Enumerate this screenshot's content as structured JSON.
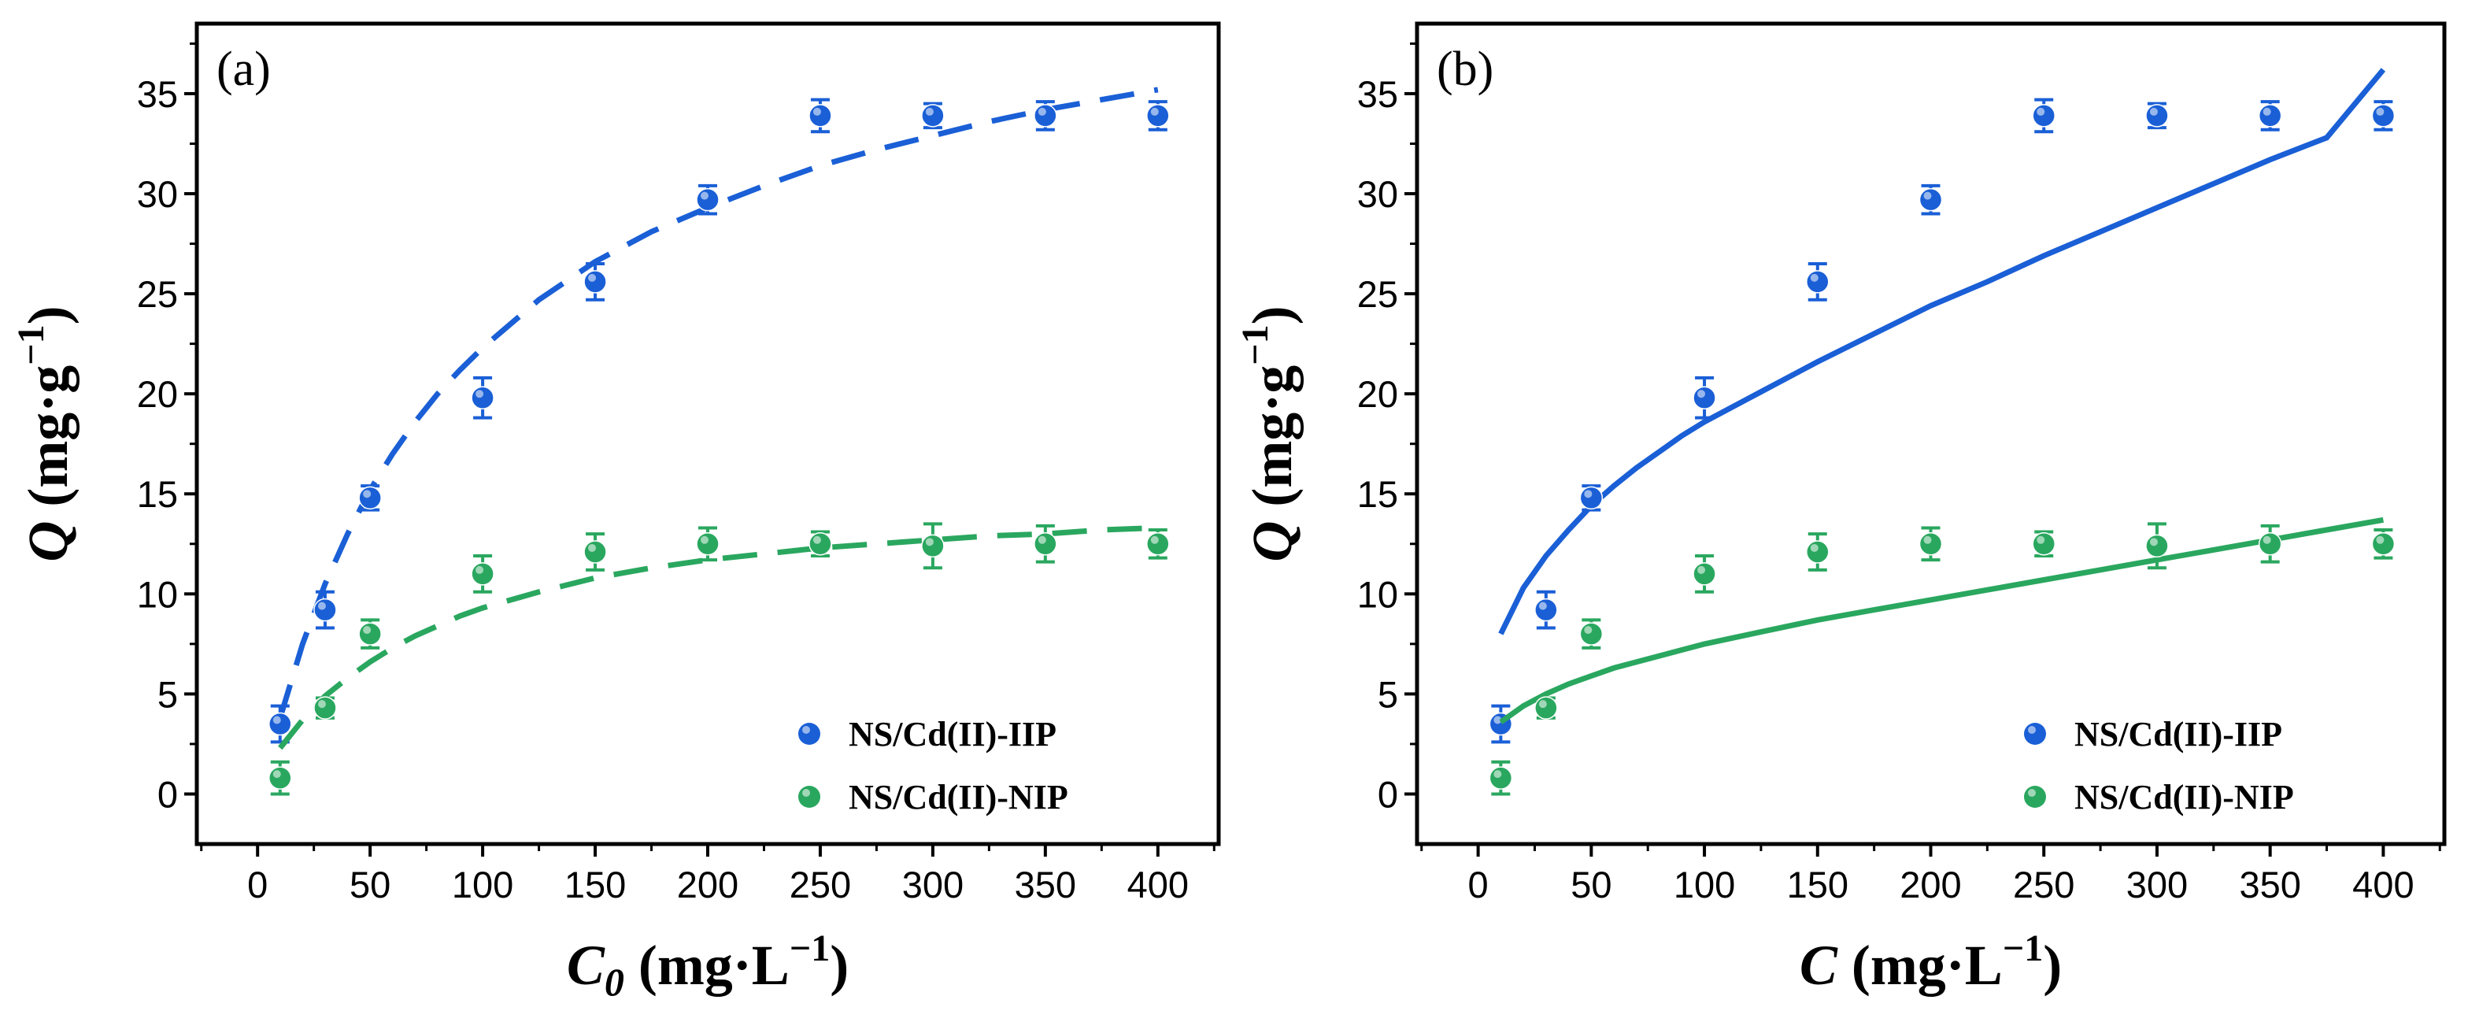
{
  "chart_data": [
    {
      "type": "scatter",
      "panel_label": "(a)",
      "fit_style": "dashed",
      "xlabel": {
        "main": "C",
        "sub": "0",
        "unit": "(mg·L",
        "sup": "−1",
        "close": ")"
      },
      "ylabel": {
        "main": "Q",
        "unit": "(mg·g",
        "sup": "−1",
        "close": ")"
      },
      "xlim": [
        -27,
        427
      ],
      "ylim": [
        -2.5,
        38.5
      ],
      "xticks": [
        0,
        50,
        100,
        150,
        200,
        250,
        300,
        350,
        400
      ],
      "yticks": [
        0,
        5,
        10,
        15,
        20,
        25,
        30,
        35
      ],
      "legend_position": "bottom-right",
      "series": [
        {
          "name": "NS/Cd(II)-IIP",
          "color": "#1a5fd6",
          "x": [
            10,
            30,
            50,
            100,
            150,
            200,
            250,
            300,
            350,
            400
          ],
          "y": [
            3.5,
            9.2,
            14.8,
            19.8,
            25.6,
            29.7,
            33.9,
            33.9,
            33.9,
            33.9
          ],
          "err": [
            0.9,
            0.9,
            0.6,
            1.0,
            0.9,
            0.7,
            0.8,
            0.6,
            0.7,
            0.7
          ],
          "fit": {
            "x": [
              10,
              20,
              30,
              40,
              50,
              60,
              70,
              80,
              90,
              100,
              125,
              150,
              175,
              200,
              225,
              250,
              275,
              300,
              325,
              350,
              375,
              400
            ],
            "y": [
              3.8,
              7.5,
              10.5,
              13.0,
              15.2,
              17.0,
              18.6,
              20.0,
              21.2,
              22.3,
              24.7,
              26.6,
              28.1,
              29.3,
              30.4,
              31.4,
              32.2,
              32.9,
              33.6,
              34.2,
              34.7,
              35.2
            ]
          }
        },
        {
          "name": "NS/Cd(II)-NIP",
          "color": "#2aa75f",
          "x": [
            10,
            30,
            50,
            100,
            150,
            200,
            250,
            300,
            350,
            400
          ],
          "y": [
            0.8,
            4.3,
            8.0,
            11.0,
            12.1,
            12.5,
            12.5,
            12.4,
            12.5,
            12.5
          ],
          "err": [
            0.8,
            0.5,
            0.7,
            0.9,
            0.9,
            0.8,
            0.6,
            1.1,
            0.9,
            0.7
          ],
          "fit": {
            "x": [
              10,
              20,
              30,
              40,
              50,
              60,
              70,
              80,
              90,
              100,
              125,
              150,
              175,
              200,
              225,
              250,
              275,
              300,
              325,
              350,
              375,
              400
            ],
            "y": [
              2.3,
              3.7,
              4.9,
              5.8,
              6.6,
              7.3,
              7.9,
              8.4,
              8.9,
              9.3,
              10.1,
              10.8,
              11.3,
              11.7,
              12.0,
              12.3,
              12.5,
              12.7,
              12.9,
              13.0,
              13.2,
              13.3
            ]
          }
        }
      ]
    },
    {
      "type": "scatter",
      "panel_label": "(b)",
      "fit_style": "solid",
      "xlabel": {
        "main": "C",
        "sub": "",
        "unit": "(mg·L",
        "sup": "−1",
        "close": ")"
      },
      "ylabel": {
        "main": "Q",
        "unit": "(mg·g",
        "sup": "−1",
        "close": ")"
      },
      "xlim": [
        -27,
        427
      ],
      "ylim": [
        -2.5,
        38.5
      ],
      "xticks": [
        0,
        50,
        100,
        150,
        200,
        250,
        300,
        350,
        400
      ],
      "yticks": [
        0,
        5,
        10,
        15,
        20,
        25,
        30,
        35
      ],
      "legend_position": "bottom-right",
      "series": [
        {
          "name": "NS/Cd(II)-IIP",
          "color": "#1a5fd6",
          "x": [
            10,
            30,
            50,
            100,
            150,
            200,
            250,
            300,
            350,
            400
          ],
          "y": [
            3.5,
            9.2,
            14.8,
            19.8,
            25.6,
            29.7,
            33.9,
            33.9,
            33.9,
            33.9
          ],
          "err": [
            0.9,
            0.9,
            0.6,
            1.0,
            0.9,
            0.7,
            0.8,
            0.6,
            0.7,
            0.7
          ],
          "fit": {
            "x": [
              10,
              20,
              30,
              40,
              50,
              60,
              70,
              80,
              90,
              100,
              125,
              150,
              175,
              200,
              225,
              250,
              275,
              300,
              325,
              350,
              375,
              400
            ],
            "y": [
              8.0,
              10.3,
              11.9,
              13.2,
              14.4,
              15.4,
              16.3,
              17.1,
              17.9,
              18.6,
              20.1,
              21.6,
              23.0,
              24.4,
              25.6,
              26.9,
              28.1,
              29.3,
              30.5,
              31.7,
              32.8,
              36.2
            ]
          }
        },
        {
          "name": "NS/Cd(II)-NIP",
          "color": "#2aa75f",
          "x": [
            10,
            30,
            50,
            100,
            150,
            200,
            250,
            300,
            350,
            400
          ],
          "y": [
            0.8,
            4.3,
            8.0,
            11.0,
            12.1,
            12.5,
            12.5,
            12.4,
            12.5,
            12.5
          ],
          "err": [
            0.8,
            0.5,
            0.7,
            0.9,
            0.9,
            0.8,
            0.6,
            1.1,
            0.9,
            0.7
          ],
          "fit": {
            "x": [
              10,
              20,
              30,
              40,
              50,
              60,
              70,
              80,
              90,
              100,
              125,
              150,
              175,
              200,
              225,
              250,
              275,
              300,
              325,
              350,
              375,
              400
            ],
            "y": [
              3.6,
              4.4,
              5.0,
              5.5,
              5.9,
              6.3,
              6.6,
              6.9,
              7.2,
              7.5,
              8.1,
              8.7,
              9.2,
              9.7,
              10.2,
              10.7,
              11.2,
              11.7,
              12.2,
              12.7,
              13.2,
              13.7
            ]
          }
        }
      ]
    }
  ]
}
